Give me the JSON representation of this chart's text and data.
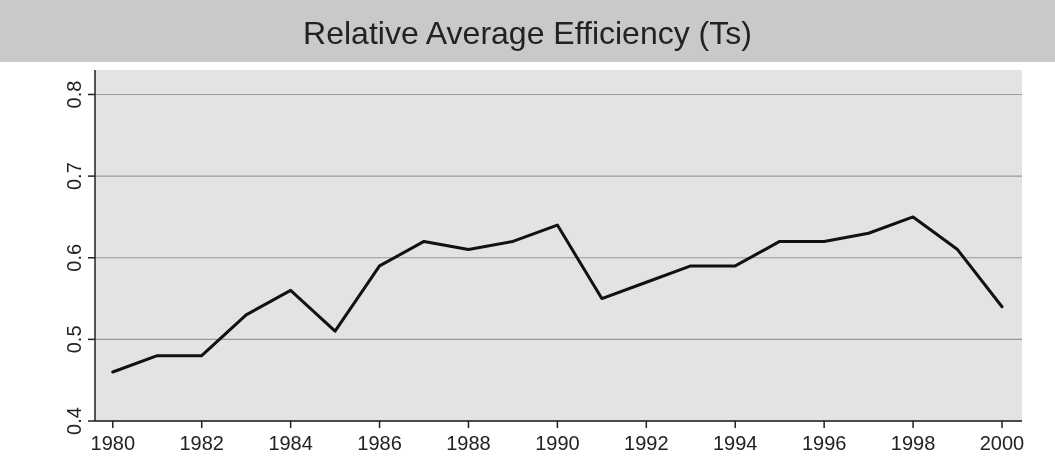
{
  "chart_data": {
    "type": "line",
    "title": "Relative Average Efficiency (Ts)",
    "x": [
      1980,
      1981,
      1982,
      1983,
      1984,
      1985,
      1986,
      1987,
      1988,
      1989,
      1990,
      1991,
      1992,
      1993,
      1994,
      1995,
      1996,
      1997,
      1998,
      1999,
      2000
    ],
    "series": [
      {
        "color": "#111111",
        "values": [
          0.46,
          0.48,
          0.48,
          0.53,
          0.56,
          0.51,
          0.59,
          0.62,
          0.61,
          0.62,
          0.64,
          0.55,
          0.57,
          0.59,
          0.59,
          0.62,
          0.62,
          0.63,
          0.65,
          0.61,
          0.54
        ]
      }
    ],
    "xlim": [
      1979.6,
      2000.45
    ],
    "xticks": [
      1980,
      1982,
      1984,
      1986,
      1988,
      1990,
      1992,
      1994,
      1996,
      1998,
      2000
    ],
    "ylim": [
      0.4,
      0.83
    ],
    "yticks": [
      0.4,
      0.5,
      0.6,
      0.7,
      0.8
    ],
    "grid": "y",
    "marker": "none",
    "line_style": "solid"
  }
}
